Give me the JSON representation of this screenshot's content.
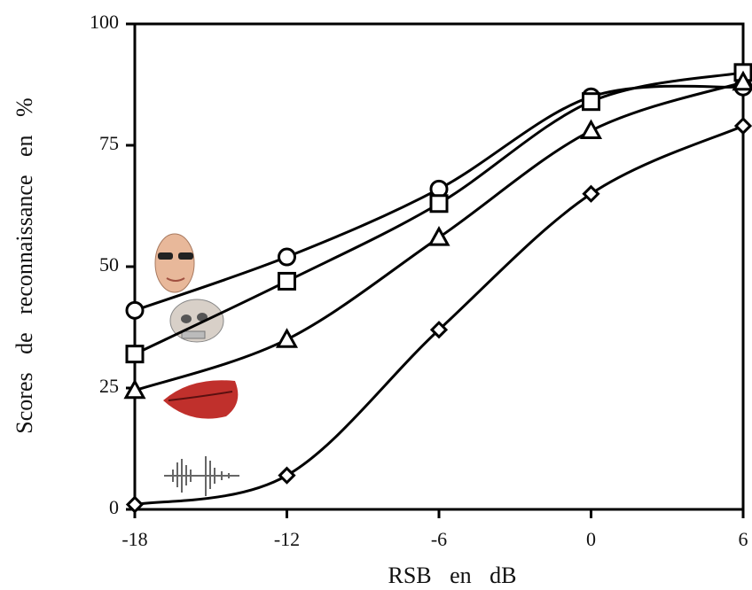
{
  "chart_data": {
    "type": "line",
    "x_label": "RSB en dB",
    "y_label": "Scores de reconnaissance en %",
    "x": [
      -18,
      -12,
      -6,
      0,
      6
    ],
    "xlim": [
      -18,
      6
    ],
    "xticks": [
      -18,
      -12,
      -6,
      0,
      6
    ],
    "ylim": [
      0,
      100
    ],
    "yticks": [
      0,
      25,
      50,
      75,
      100
    ],
    "smooth": true,
    "series": [
      {
        "marker": "circle",
        "color": "#000000",
        "values": [
          41,
          52,
          66,
          85,
          87
        ]
      },
      {
        "marker": "square",
        "color": "#000000",
        "values": [
          32,
          47,
          63,
          84,
          90
        ]
      },
      {
        "marker": "triangle",
        "color": "#000000",
        "values": [
          24.5,
          35,
          56,
          78,
          88
        ]
      },
      {
        "marker": "diamond",
        "color": "#000000",
        "values": [
          1,
          7,
          37,
          65,
          79
        ]
      }
    ]
  }
}
